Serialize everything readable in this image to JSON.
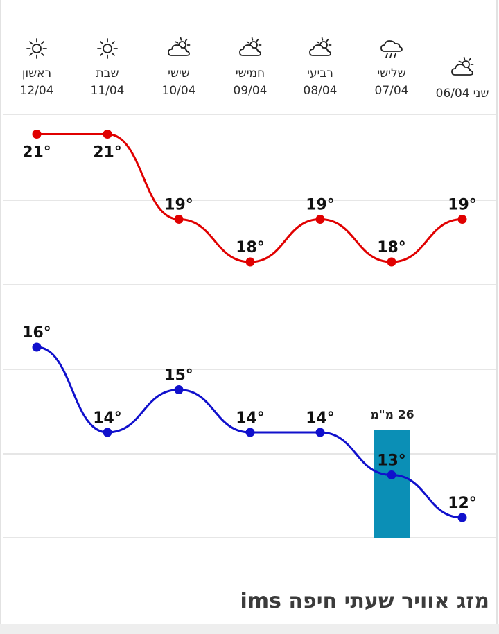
{
  "days": [
    {
      "name": "שני",
      "date": "06/04",
      "icon": "partly-cloudy-icon"
    },
    {
      "name": "שלישי",
      "date": "07/04",
      "icon": "rain-cloud-icon"
    },
    {
      "name": "רביעי",
      "date": "08/04",
      "icon": "partly-cloudy-icon"
    },
    {
      "name": "חמישי",
      "date": "09/04",
      "icon": "partly-cloudy-icon"
    },
    {
      "name": "שישי",
      "date": "10/04",
      "icon": "partly-cloudy-icon"
    },
    {
      "name": "שבת",
      "date": "11/04",
      "icon": "sun-icon"
    },
    {
      "name": "ראשון",
      "date": "12/04",
      "icon": "sun-icon"
    }
  ],
  "chart_data": {
    "type": "line",
    "categories": [
      "06/04",
      "07/04",
      "08/04",
      "09/04",
      "10/04",
      "11/04",
      "12/04"
    ],
    "series": [
      {
        "values": [
          19,
          18,
          19,
          18,
          19,
          21,
          21
        ],
        "color": "#e00000"
      },
      {
        "values": [
          12,
          13,
          14,
          14,
          15,
          14,
          16
        ],
        "color": "#1010cc"
      }
    ],
    "bars": [
      {
        "category": "07/04",
        "value": 26,
        "label": "26 מ\"מ",
        "color": "#0b8fb6"
      }
    ],
    "value_suffix": "°",
    "grid": true
  },
  "footer": {
    "title": "מזג אוויר שעתי חיפה ims"
  }
}
